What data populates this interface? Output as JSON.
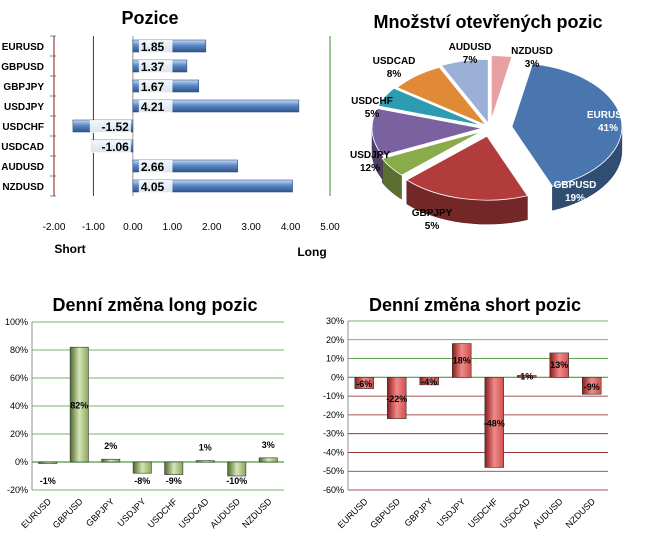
{
  "chart_data": [
    {
      "id": "pozice",
      "type": "bar",
      "orientation": "horizontal",
      "title": "Pozice",
      "categories": [
        "EURUSD",
        "GBPUSD",
        "GBPJPY",
        "USDJPY",
        "USDCHF",
        "USDCAD",
        "AUDUSD",
        "NZDUSD"
      ],
      "values": [
        1.85,
        1.37,
        1.67,
        4.21,
        -1.52,
        -1.06,
        2.66,
        4.05
      ],
      "value_labels": [
        "1.85",
        "1.37",
        "1.67",
        "4.21",
        "-1.52",
        "-1.06",
        "2.66",
        "4.05"
      ],
      "xlim": [
        -2,
        5
      ],
      "xticks": [
        -2,
        -1,
        0,
        1,
        2,
        3,
        4,
        5
      ],
      "xtick_labels": [
        "-2.00",
        "-1.00",
        "0.00",
        "1.00",
        "2.00",
        "3.00",
        "4.00",
        "5.00"
      ],
      "left_label": "Short",
      "right_label": "Long",
      "grid": true,
      "colors": {
        "bar": "#5b88c8",
        "bar_dark": "#2f5586",
        "line_short": "#8b1a1a",
        "line_zero": "#999999",
        "line_long": "#3a8a2a"
      }
    },
    {
      "id": "mnozstvi",
      "type": "pie",
      "title": "Množství otevřených pozic",
      "slices": [
        {
          "label": "EURUSD",
          "value": 41,
          "pct": "41%",
          "color": "#4a76b0"
        },
        {
          "label": "GBPUSD",
          "value": 19,
          "pct": "19%",
          "color": "#b23c3c"
        },
        {
          "label": "GBPJPY",
          "value": 5,
          "pct": "5%",
          "color": "#8aab4a"
        },
        {
          "label": "USDJPY",
          "value": 12,
          "pct": "12%",
          "color": "#7a62a0"
        },
        {
          "label": "USDCHF",
          "value": 5,
          "pct": "5%",
          "color": "#2e9cb0"
        },
        {
          "label": "USDCAD",
          "value": 8,
          "pct": "8%",
          "color": "#e08a35"
        },
        {
          "label": "AUDUSD",
          "value": 7,
          "pct": "7%",
          "color": "#9ab0d6"
        },
        {
          "label": "NZDUSD",
          "value": 3,
          "pct": "3%",
          "color": "#e8a0a0"
        }
      ]
    },
    {
      "id": "denni-long",
      "type": "bar",
      "title": "Denní změna long pozic",
      "categories": [
        "EURUSD",
        "GBPUSD",
        "GBPJPY",
        "USDJPY",
        "USDCHF",
        "USDCAD",
        "AUDUSD",
        "NZDUSD"
      ],
      "values": [
        -1,
        82,
        2,
        -8,
        -9,
        1,
        -10,
        3
      ],
      "value_labels": [
        "-1%",
        "82%",
        "2%",
        "-8%",
        "-9%",
        "1%",
        "-10%",
        "3%"
      ],
      "ylim": [
        -20,
        100
      ],
      "yticks": [
        -20,
        0,
        20,
        40,
        60,
        80,
        100
      ],
      "ytick_labels": [
        "-20%",
        "0%",
        "20%",
        "40%",
        "60%",
        "80%",
        "100%"
      ],
      "grid": true,
      "colors": {
        "bar": "#8aa85a",
        "bar_light": "#d6e4b8",
        "bar_dark": "#4e6a28",
        "grid": "#4a9a3a"
      }
    },
    {
      "id": "denni-short",
      "type": "bar",
      "title": "Denní změna short pozic",
      "categories": [
        "EURUSD",
        "GBPUSD",
        "GBPJPY",
        "USDJPY",
        "USDCHF",
        "USDCAD",
        "AUDUSD",
        "NZDUSD"
      ],
      "values": [
        -6,
        -22,
        -4,
        18,
        -48,
        1,
        13,
        -9
      ],
      "value_labels": [
        "-6%",
        "-22%",
        "-4%",
        "18%",
        "-48%",
        "1%",
        "13%",
        "-9%"
      ],
      "ylim": [
        -60,
        30
      ],
      "yticks": [
        -60,
        -50,
        -40,
        -30,
        -20,
        -10,
        0,
        10,
        20,
        30
      ],
      "ytick_labels": [
        "-60%",
        "-50%",
        "-40%",
        "-30%",
        "-20%",
        "-10%",
        "0%",
        "10%",
        "20%",
        "30%"
      ],
      "grid": true,
      "colors": {
        "bar": "#d05050",
        "bar_light": "#f08a8a",
        "bar_dark": "#8a1a1a",
        "grid_pos": "#4a9a3a",
        "grid_neg": "#8b1a1a"
      }
    }
  ]
}
